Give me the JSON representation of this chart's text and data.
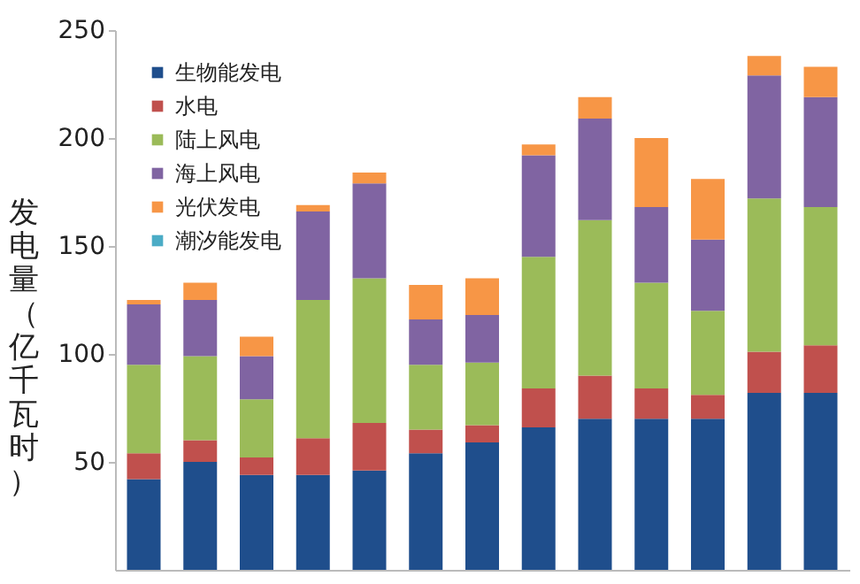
{
  "chart_data": {
    "type": "bar",
    "stacked": true,
    "ylabel": "发电量（亿千瓦时）",
    "categories": [
      null,
      null,
      null,
      null,
      null,
      null,
      null,
      null,
      null,
      null,
      null,
      null,
      null
    ],
    "series": [
      {
        "name": "生物能发电",
        "color": "#1f4e8c",
        "values": [
          42,
          50,
          44,
          44,
          46,
          54,
          59,
          66,
          70,
          70,
          70,
          82,
          82
        ]
      },
      {
        "name": "水电",
        "color": "#c0504d",
        "values": [
          12,
          10,
          8,
          17,
          22,
          11,
          8,
          18,
          20,
          14,
          11,
          19,
          22
        ]
      },
      {
        "name": "陆上风电",
        "color": "#9bbb59",
        "values": [
          41,
          39,
          27,
          64,
          67,
          30,
          29,
          61,
          72,
          49,
          39,
          71,
          64
        ]
      },
      {
        "name": "海上风电",
        "color": "#8064a2",
        "values": [
          28,
          26,
          20,
          41,
          44,
          21,
          22,
          47,
          47,
          35,
          33,
          57,
          51
        ]
      },
      {
        "name": "光伏发电",
        "color": "#f79646",
        "values": [
          2,
          8,
          9,
          3,
          5,
          16,
          17,
          5,
          10,
          32,
          28,
          9,
          14
        ]
      },
      {
        "name": "潮汐能发电",
        "color": "#4bacc6",
        "values": [
          0,
          0,
          0,
          0,
          0,
          0,
          0,
          0,
          0,
          0,
          0,
          0,
          0
        ]
      }
    ],
    "ylim": [
      0,
      250
    ],
    "yticks": [
      50,
      100,
      150,
      200,
      250
    ],
    "legend": "top left"
  }
}
